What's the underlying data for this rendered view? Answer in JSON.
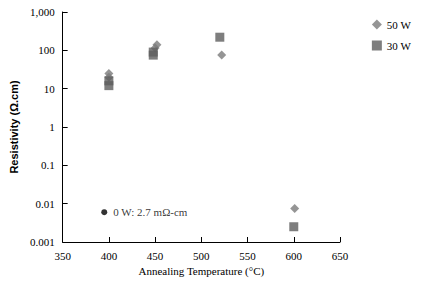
{
  "chart_data": {
    "type": "scatter",
    "x_label": "Annealing Temperature (°C)",
    "y_label": "Resistivity (Ω.cm)",
    "xlim": [
      350,
      650
    ],
    "xticks": [
      350,
      400,
      450,
      500,
      550,
      600,
      650
    ],
    "ylim": [
      0.001,
      1000
    ],
    "yticks": [
      0.001,
      0.01,
      0.1,
      1,
      10,
      100,
      {
        "value": 1000,
        "label": "1,000"
      }
    ],
    "log": "y",
    "grid": false,
    "legend": "right",
    "series": [
      {
        "name": "50 W",
        "color": "#7a7a7a",
        "marker": "diamond",
        "x": [
          400,
          400,
          452,
          450,
          522,
          601
        ],
        "values": [
          25,
          20,
          140,
          115,
          75,
          0.0075
        ]
      },
      {
        "name": "30 W",
        "color": "#5e5e5e",
        "marker": "square",
        "x": [
          400,
          400,
          448,
          448,
          520,
          600
        ],
        "values": [
          16,
          12,
          90,
          75,
          220,
          0.0025
        ]
      }
    ],
    "annotations": [
      {
        "text": "0 W: 2.7 mΩ-cm",
        "x": 395,
        "y": 0.006,
        "color": "#000000",
        "marker": "circle"
      }
    ]
  }
}
